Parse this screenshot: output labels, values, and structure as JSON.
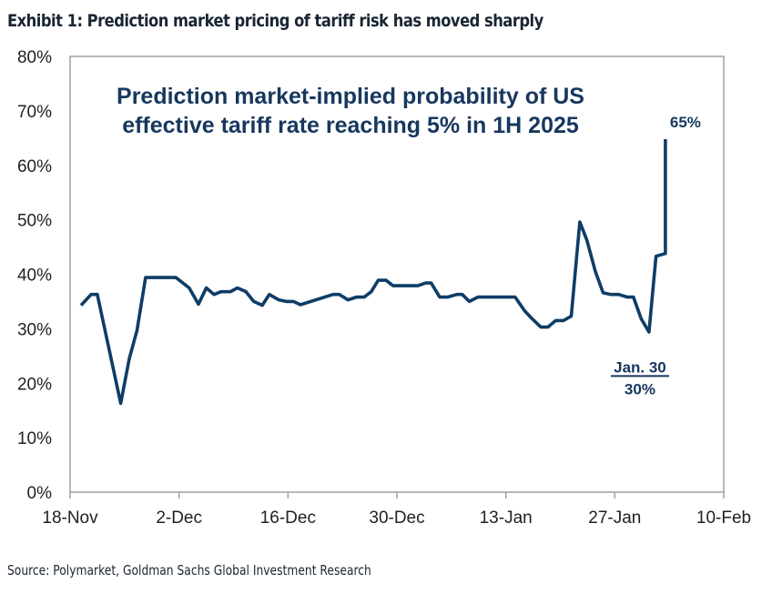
{
  "exhibit_title": "Exhibit 1: Prediction market pricing of tariff risk has moved sharply",
  "source": "Source: Polymarket, Goldman Sachs Global Investment Research",
  "colors": {
    "line": "#0e3d66",
    "title_text": "#17375e",
    "axis": "#a0a0a0"
  },
  "chart_data": {
    "type": "line",
    "title": "Prediction market-implied probability of US effective tariff rate reaching 5% in 1H 2025",
    "title_lines": [
      "Prediction market-implied probability of US",
      "effective tariff rate reaching 5% in 1H 2025"
    ],
    "xlabel": "",
    "ylabel": "",
    "x_unit": "days since 18-Nov-2024",
    "xlim": [
      0,
      84
    ],
    "ylim": [
      0,
      80
    ],
    "y_ticks": [
      0,
      10,
      20,
      30,
      40,
      50,
      60,
      70,
      80
    ],
    "y_tick_labels": [
      "0%",
      "10%",
      "20%",
      "30%",
      "40%",
      "50%",
      "60%",
      "70%",
      "80%"
    ],
    "x_ticks": [
      0,
      14,
      28,
      42,
      56,
      70,
      84
    ],
    "x_tick_labels": [
      "18-Nov",
      "2-Dec",
      "16-Dec",
      "30-Dec",
      "13-Jan",
      "27-Jan",
      "10-Feb"
    ],
    "grid": false,
    "legend": "none",
    "series": [
      {
        "name": "Implied probability (%)",
        "x": [
          1.4,
          2.7,
          3.5,
          6.5,
          7.6,
          8.6,
          9.7,
          13.6,
          15.3,
          16.5,
          17.5,
          18.5,
          19.4,
          20.6,
          21.5,
          22.6,
          23.6,
          24.7,
          25.6,
          26.8,
          27.8,
          28.7,
          29.6,
          33.8,
          34.6,
          35.7,
          36.8,
          37.8,
          38.7,
          39.6,
          40.6,
          41.5,
          44.7,
          45.7,
          46.4,
          47.5,
          48.5,
          49.7,
          50.4,
          51.3,
          52.4,
          57.2,
          58.4,
          59.4,
          60.5,
          61.4,
          62.4,
          63.4,
          64.4,
          65.5,
          66.4,
          67.5,
          68.5,
          69.5,
          70.5,
          71.6,
          72.4,
          73.4,
          74.4,
          75.3,
          76.5,
          76.5
        ],
        "values": [
          34.3,
          36.3,
          36.3,
          16.3,
          24.5,
          29.7,
          39.4,
          39.4,
          37.5,
          34.5,
          37.5,
          36.3,
          36.8,
          36.8,
          37.5,
          36.8,
          35.0,
          34.3,
          36.3,
          35.3,
          35.0,
          35.0,
          34.4,
          36.3,
          36.3,
          35.3,
          35.8,
          35.8,
          36.8,
          38.9,
          38.9,
          37.9,
          37.9,
          38.4,
          38.4,
          35.8,
          35.8,
          36.3,
          36.3,
          35.0,
          35.8,
          35.8,
          33.3,
          31.8,
          30.3,
          30.3,
          31.5,
          31.5,
          32.3,
          49.6,
          46.3,
          40.5,
          36.6,
          36.3,
          36.3,
          35.8,
          35.8,
          31.8,
          29.4,
          43.3,
          43.8,
          64.8
        ]
      }
    ],
    "annotations": [
      {
        "text": "65%",
        "x": 76.5,
        "y": 65,
        "position": "above-right"
      },
      {
        "text": "Jan. 30",
        "underline": true,
        "x": 74.4,
        "y": 30,
        "position": "below"
      },
      {
        "text": "30%",
        "x": 74.4,
        "y": 30,
        "position": "below"
      }
    ]
  }
}
